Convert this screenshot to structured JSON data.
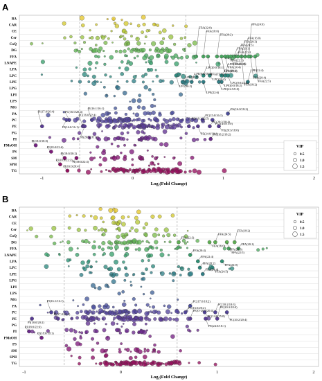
{
  "chart_data": [
    {
      "panel": "A",
      "type": "scatter",
      "xlabel": "Log₂(Fold Change)",
      "xticks": [
        "-1",
        "0",
        "1",
        "2"
      ],
      "xlim": [
        -1.25,
        2.05
      ],
      "reference_lines_x": [
        -0.585,
        0.585
      ],
      "categories": [
        "BA",
        "CAR",
        "CE",
        "Cer",
        "CoQ",
        "DG",
        "FFA",
        "LNAPE",
        "LPA",
        "LPC",
        "LPE",
        "LPG",
        "LPI",
        "LPS",
        "MG",
        "PA",
        "PC",
        "PE",
        "PG",
        "PI",
        "PMeOH",
        "PS",
        "SM",
        "SPH",
        "TG"
      ],
      "legend": {
        "title": "VIP",
        "sizes": [
          "0.5",
          "1.0",
          "1.5"
        ],
        "placement": "bottom-right"
      },
      "annotations": [
        {
          "category": "FFA",
          "label": "FFA(22:4)",
          "x": 1.13
        },
        {
          "category": "FFA",
          "label": "FFA(22:3)",
          "x": 1.05
        },
        {
          "category": "FFA",
          "label": "FFA(20:1)",
          "x": 1.12
        },
        {
          "category": "FFA",
          "label": "FFA(22:6)",
          "x": 1.08
        },
        {
          "category": "FFA",
          "label": "FFA(24:5)",
          "x": 1.16
        },
        {
          "category": "FFA",
          "label": "FFA(24:4)",
          "x": 1.02
        },
        {
          "category": "FFA",
          "label": "FFA(20:3)",
          "x": 1.2
        },
        {
          "category": "FFA",
          "label": "FFA(18:1)",
          "x": 0.98
        },
        {
          "category": "FFA",
          "label": "FFA(16:0)",
          "x": 1.24
        },
        {
          "category": "FFA",
          "label": "FFA(19:2)",
          "x": 0.83
        },
        {
          "category": "FFA",
          "label": "FFA(20:2)",
          "x": 0.93
        },
        {
          "category": "FFA",
          "label": "FFA(20:4)",
          "x": 1.3
        },
        {
          "category": "FFA",
          "label": "FFA(18:0)",
          "x": 0.78
        },
        {
          "category": "FFA",
          "label": "FFA(22:5)",
          "x": 1.35
        },
        {
          "category": "FFA",
          "label": "FFA(22:0)",
          "x": 0.7
        },
        {
          "category": "FFA",
          "label": "FFA(18:2)",
          "x": 1.2
        },
        {
          "category": "FFA",
          "label": "FFA(24:6)",
          "x": 1.28
        },
        {
          "category": "LPC",
          "label": "LPC(20:3)",
          "x": 0.98
        },
        {
          "category": "LPC",
          "label": "LPC(20:4)",
          "x": 0.85
        },
        {
          "category": "LPC",
          "label": "LPC(0:0/18:1)",
          "x": 0.78
        },
        {
          "category": "LPC",
          "label": "LPC(0:0/22:4)",
          "x": 1.05
        },
        {
          "category": "LPC",
          "label": "LPE(18:2/0:0)",
          "x": 1.02
        },
        {
          "category": "LPC",
          "label": "LPC(20:2)",
          "x": 0.48
        },
        {
          "category": "LPE",
          "label": "LPC(20:5)",
          "x": 0.55
        },
        {
          "category": "LPE",
          "label": "LPE(0:0/18:2)",
          "x": 0.98
        },
        {
          "category": "LPE",
          "label": "LPE(0:0/18:2)",
          "x": 0.65
        },
        {
          "category": "LPE",
          "label": "LPE(22:5/0:0)",
          "x": 0.95
        },
        {
          "category": "LPE",
          "label": "LPE(22:4)",
          "x": 1.27
        },
        {
          "category": "LPE",
          "label": "LPE(22:6)",
          "x": 0.78
        },
        {
          "category": "PA",
          "label": "PA(16:0/18:2)",
          "x": 1.05
        },
        {
          "category": "PC",
          "label": "PC(15:0/16:1)",
          "x": 0.77
        },
        {
          "category": "PC",
          "label": "PC(14:0/15:0)",
          "x": 0.88
        },
        {
          "category": "PC",
          "label": "PC(16:0/20:4)",
          "x": -0.7
        },
        {
          "category": "PC",
          "label": "PI(16:0/16:1)",
          "x": -0.73
        },
        {
          "category": "PC",
          "label": "PI(16:1/16:1)",
          "x": -0.45
        },
        {
          "category": "PE",
          "label": "PC(20:2/20:4)",
          "x": 0.85
        },
        {
          "category": "PE",
          "label": "PE(20:3/18:0)",
          "x": 0.95
        },
        {
          "category": "PE",
          "label": "PE(18:1/22:5)",
          "x": 0.62
        },
        {
          "category": "PE",
          "label": "PE(24:0/18:1)",
          "x": 0.72
        },
        {
          "category": "PE",
          "label": "PC(16:0/22:4)",
          "x": -0.55
        },
        {
          "category": "PE",
          "label": "PI(20:3/18:1)",
          "x": -0.53
        },
        {
          "category": "PE",
          "label": "PI(17:0/20:4)",
          "x": -1.0
        },
        {
          "category": "PI",
          "label": "PC(18:2/18:2)",
          "x": 0.86
        },
        {
          "category": "PMeOH",
          "label": "PI(18:0/18:0)",
          "x": -1.07
        },
        {
          "category": "PS",
          "label": "PI(18:0/22:6)",
          "x": -0.9
        },
        {
          "category": "SM",
          "label": "PI(18:0/20:2)",
          "x": -0.75
        },
        {
          "category": "SM",
          "label": "PI(18:0/22:4)",
          "x": -0.62
        },
        {
          "category": "SPH",
          "label": "PI(18:0/22:3)",
          "x": -0.8
        },
        {
          "category": "TG",
          "label": "PI(16:0/20:4)",
          "x": -0.72
        }
      ]
    },
    {
      "panel": "B",
      "type": "scatter",
      "xlabel": "Log₂(Fold Change)",
      "xticks": [
        "-1",
        "0",
        "1",
        "2"
      ],
      "xlim": [
        -1.05,
        2.05
      ],
      "reference_lines_x": [
        -0.585,
        0.585
      ],
      "categories": [
        "BA",
        "CAR",
        "CE",
        "Cer",
        "CoQ",
        "DG",
        "FFA",
        "LNAPE",
        "LPA",
        "LPC",
        "LPE",
        "LPG",
        "LPI",
        "LPS",
        "MG",
        "PA",
        "PC",
        "PE",
        "PG",
        "PI",
        "PMeOH",
        "PS",
        "SM",
        "SPH",
        "TG"
      ],
      "legend": {
        "title": "VIP",
        "sizes": [
          "0.5",
          "1.0",
          "1.5"
        ],
        "placement": "top-right"
      },
      "annotations": [
        {
          "category": "DG",
          "label": "FFA(22:3)",
          "x": 0.6
        },
        {
          "category": "DG",
          "label": "FFA(16:0)",
          "x": 0.92
        },
        {
          "category": "DG",
          "label": "FFA(24:5)",
          "x": 0.98
        },
        {
          "category": "DG",
          "label": "FFA(20:3)",
          "x": 1.1
        },
        {
          "category": "DG",
          "label": "FFA(18:2)",
          "x": 1.18
        },
        {
          "category": "FFA",
          "label": "FFA(20:1)",
          "x": 1.22
        },
        {
          "category": "FFA",
          "label": "FFA(22:5)",
          "x": 1.12
        },
        {
          "category": "LNAPE",
          "label": "FFA(20:4)",
          "x": 0.72
        },
        {
          "category": "LPA",
          "label": "FFA(22:4)",
          "x": 0.8
        },
        {
          "category": "LPA",
          "label": "FFA(22:0)",
          "x": 1.05
        },
        {
          "category": "LPC",
          "label": "FFA(20:2)",
          "x": 0.82
        },
        {
          "category": "LPC",
          "label": "FFA(24:5)",
          "x": 0.95
        },
        {
          "category": "LPE",
          "label": "FFA(24:4)",
          "x": 0.85
        },
        {
          "category": "PA",
          "label": "PC(17:0/18:2)",
          "x": 0.72
        },
        {
          "category": "PC",
          "label": "PC(16:0/20:2)",
          "x": 0.67
        },
        {
          "category": "PC",
          "label": "PC(14:0/15:0)",
          "x": 0.87
        },
        {
          "category": "PC",
          "label": "PC(18:2/18:3)",
          "x": 0.98
        },
        {
          "category": "PC",
          "label": "PC(20:2/20:4)",
          "x": 1.1
        },
        {
          "category": "PC",
          "label": "PI(16:1/16:1)",
          "x": -0.72
        },
        {
          "category": "PE",
          "label": "PI(17:0/18:2)",
          "x": -0.65
        },
        {
          "category": "PE",
          "label": "PI(18:0/20:2)",
          "x": -0.92
        },
        {
          "category": "PE",
          "label": "PE(O-20:3/20:4)",
          "x": 0.72
        },
        {
          "category": "PE",
          "label": "PE(24:0/18:1)",
          "x": 0.88
        },
        {
          "category": "PE",
          "label": "PE(20:3/18:0)",
          "x": 1.0
        },
        {
          "category": "PI",
          "label": "PI(18:0/22:6)",
          "x": -0.95
        },
        {
          "category": "PMeOH",
          "label": "PI(18:0/18:1)",
          "x": -0.82
        }
      ]
    }
  ],
  "colors": {
    "ramp": [
      "#e6c62c",
      "#d3c92f",
      "#b9c93a",
      "#9bc443",
      "#7dbd4d",
      "#62b556",
      "#4aab62",
      "#3aa06d",
      "#309478",
      "#2e8a80",
      "#308088",
      "#35778f",
      "#3b6d94",
      "#416398",
      "#46599b",
      "#4c4f9d",
      "#53459c",
      "#5b3c98",
      "#633393",
      "#6c2a8d",
      "#762285",
      "#7f1b7c",
      "#871572",
      "#8f1168",
      "#960f5e"
    ],
    "edge": "#3d3d3d"
  }
}
